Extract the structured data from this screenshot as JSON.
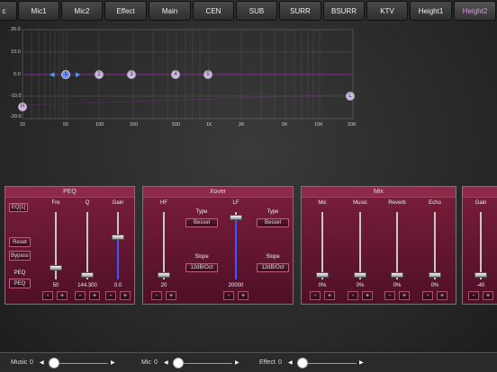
{
  "tabs": [
    {
      "label": "c"
    },
    {
      "label": "Mic1"
    },
    {
      "label": "Mic2"
    },
    {
      "label": "Effect"
    },
    {
      "label": "Main"
    },
    {
      "label": "CEN"
    },
    {
      "label": "SUB"
    },
    {
      "label": "SURR"
    },
    {
      "label": "BSURR"
    },
    {
      "label": "KTV"
    },
    {
      "label": "Height1"
    },
    {
      "label": "Height2"
    }
  ],
  "graph": {
    "y_labels": [
      "20.0",
      "10.0",
      "0.0",
      "-10.0",
      "-20.0"
    ],
    "x_labels": [
      "20",
      "50",
      "100",
      "200",
      "500",
      "1K",
      "2K",
      "5K",
      "10K",
      "20K"
    ],
    "points": [
      "1",
      "2",
      "3",
      "4",
      "5"
    ],
    "h_label": "H",
    "l_label": "L",
    "left_arrow": "◀",
    "right_arrow": "▶"
  },
  "peq": {
    "title": "PEQ",
    "eq_button": "EQ[1]",
    "reset": "Reset",
    "bypass": "Bypass",
    "peq_label": "PEQ",
    "peq_button": "PEQ",
    "headers": [
      "Fre",
      "Q",
      "Gain"
    ],
    "values": [
      "50",
      "144.300",
      "0.0"
    ]
  },
  "xover": {
    "title": "Xover",
    "hf": "HF",
    "lf": "LF",
    "type_label": "Type",
    "bessel": "Bessel",
    "slope_label": "Slope",
    "slope": "12dB/Oct",
    "hf_value": "20",
    "lf_value": "20000"
  },
  "mix": {
    "title": "Mix",
    "headers": [
      "Mic",
      "Music",
      "Reverb",
      "Echo"
    ],
    "values": [
      "0%",
      "0%",
      "0%",
      "0%"
    ]
  },
  "gain_panel": {
    "header": "Gain",
    "value": "-40"
  },
  "buttons": {
    "minus": "-",
    "plus": "+"
  },
  "bottom": {
    "music_label": "Music",
    "music_value": "0",
    "mic_label": "Mic",
    "mic_value": "0",
    "effect_label": "Effect",
    "effect_value": "0",
    "left": "◀",
    "right": "▶"
  }
}
